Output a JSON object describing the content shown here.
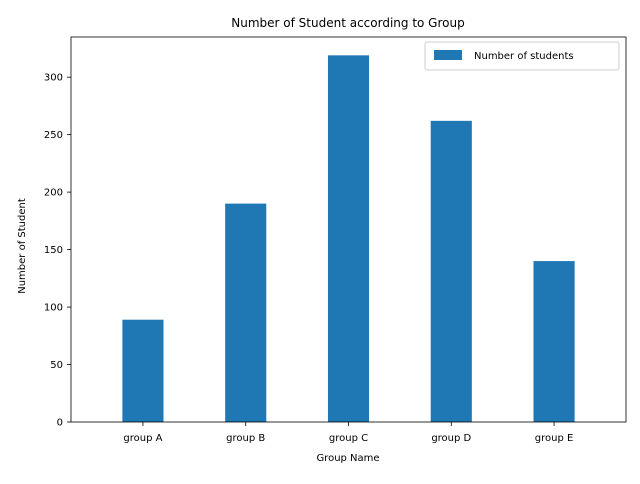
{
  "chart_data": {
    "type": "bar",
    "title": "Number of Student according to Group",
    "xlabel": "Group Name",
    "ylabel": "Number of Student",
    "categories": [
      "group A",
      "group B",
      "group C",
      "group D",
      "group E"
    ],
    "series": [
      {
        "name": "Number of students",
        "values": [
          89,
          190,
          319,
          262,
          140
        ],
        "color": "#1f77b4"
      }
    ],
    "ylim": [
      0,
      334.95
    ],
    "yticks": [
      0,
      50,
      100,
      150,
      200,
      250,
      300
    ],
    "grid": false,
    "legend": "top-right"
  }
}
